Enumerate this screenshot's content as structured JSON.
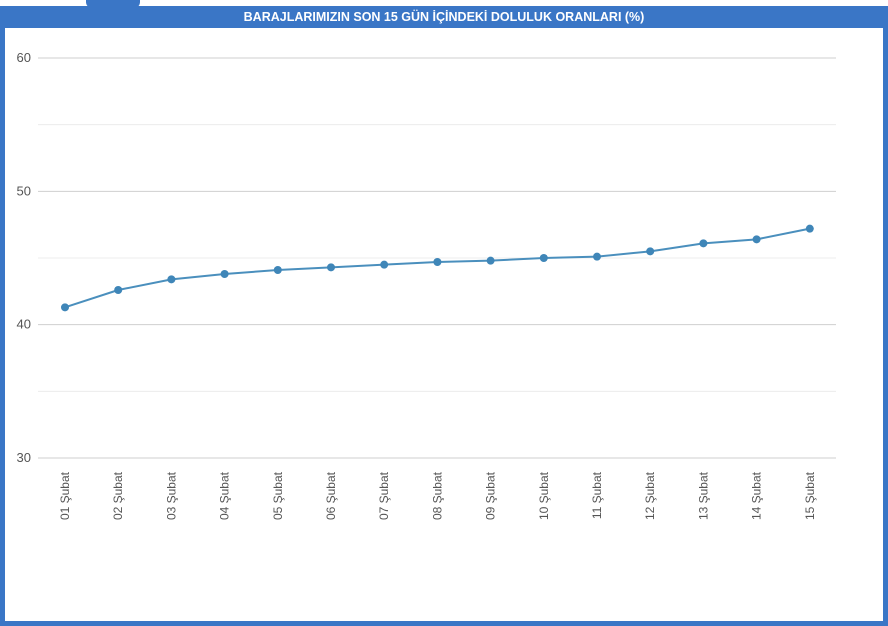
{
  "chart_data": {
    "type": "line",
    "title": "BARAJLARIMIZIN SON 15 GÜN İÇİNDEKİ DOLULUK ORANLARI (%)",
    "categories": [
      "01 Şubat",
      "02 Şubat",
      "03 Şubat",
      "04 Şubat",
      "05 Şubat",
      "06 Şubat",
      "07 Şubat",
      "08 Şubat",
      "09 Şubat",
      "10 Şubat",
      "11 Şubat",
      "12 Şubat",
      "13 Şubat",
      "14 Şubat",
      "15 Şubat"
    ],
    "series": [
      {
        "values": [
          41.3,
          42.6,
          43.4,
          43.8,
          44.1,
          44.3,
          44.5,
          44.7,
          44.8,
          45.0,
          45.1,
          45.5,
          46.1,
          46.4,
          47.2
        ]
      }
    ],
    "ylim": [
      30,
      60
    ],
    "yticks": [
      30,
      40,
      50,
      60
    ],
    "grid": true,
    "line_color": "#4a8fbd",
    "marker_color": "#3f86b8"
  }
}
